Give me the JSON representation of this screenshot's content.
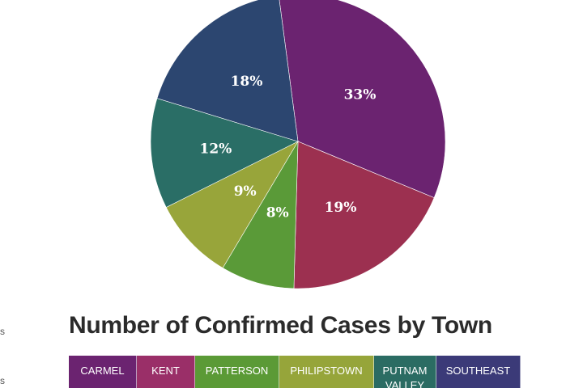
{
  "chart_data": {
    "type": "pie",
    "title": "Number of Confirmed Cases by Town",
    "slices": [
      {
        "label": "CARMEL",
        "percent": 33,
        "color": "#6b2370"
      },
      {
        "label": "KENT",
        "percent": 19,
        "color": "#9c3050"
      },
      {
        "label": "PATTERSON",
        "percent": 8,
        "color": "#5a9a38"
      },
      {
        "label": "PHILIPSTOWN",
        "percent": 9,
        "color": "#98a53a"
      },
      {
        "label": "PUTNAM VALLEY",
        "percent": 12,
        "color": "#2a6e66"
      },
      {
        "label": "SOUTHEAST",
        "percent": 18,
        "color": "#2c4670"
      }
    ],
    "percent_labels": [
      "33%",
      "19%",
      "8%",
      "9%",
      "12%",
      "18%"
    ],
    "legend_placement": "bottom"
  },
  "legend": {
    "items": [
      {
        "label": "CARMEL",
        "color": "#6b2370"
      },
      {
        "label": "KENT",
        "color": "#9a2f68"
      },
      {
        "label": "PATTERSON",
        "color": "#5b9a36"
      },
      {
        "label": "PHILIPSTOWN",
        "color": "#96a53a"
      },
      {
        "label": "PUTNAM VALLEY",
        "color": "#2b6c63"
      },
      {
        "label": "SOUTHEAST",
        "color": "#3b3a78"
      }
    ]
  },
  "edge_fragments": [
    "s",
    "s"
  ]
}
